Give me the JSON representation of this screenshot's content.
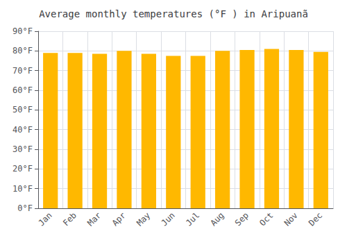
{
  "chart_data": {
    "type": "bar",
    "title": "Average monthly temperatures (°F ) in Aripuanã",
    "categories": [
      "Jan",
      "Feb",
      "Mar",
      "Apr",
      "May",
      "Jun",
      "Jul",
      "Aug",
      "Sep",
      "Oct",
      "Nov",
      "Dec"
    ],
    "values": [
      79,
      79,
      78.5,
      80,
      78.5,
      77.5,
      77.5,
      80,
      80.5,
      81,
      80.5,
      79.5
    ],
    "color": "#FFB800",
    "ylim": [
      0,
      90
    ],
    "yticks": [
      {
        "value": 0,
        "label": "0°F"
      },
      {
        "value": 10,
        "label": "10°F"
      },
      {
        "value": 20,
        "label": "20°F"
      },
      {
        "value": 30,
        "label": "30°F"
      },
      {
        "value": 40,
        "label": "40°F"
      },
      {
        "value": 50,
        "label": "50°F"
      },
      {
        "value": 60,
        "label": "60°F"
      },
      {
        "value": 70,
        "label": "70°F"
      },
      {
        "value": 80,
        "label": "80°F"
      },
      {
        "value": 90,
        "label": "90°F"
      }
    ],
    "grid": true
  }
}
